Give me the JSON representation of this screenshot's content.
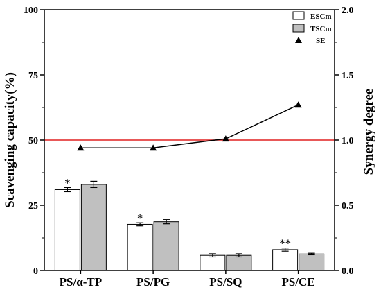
{
  "chart_data": {
    "type": "bar",
    "categories": [
      "PS/α-TP",
      "PS/PG",
      "PS/SQ",
      "PS/CE"
    ],
    "series": [
      {
        "name": "ESCm",
        "values": [
          31.0,
          17.7,
          5.8,
          8.0
        ],
        "errors": [
          0.8,
          0.6,
          0.6,
          0.6
        ],
        "color": "#ffffff"
      },
      {
        "name": "TSCm",
        "values": [
          33.0,
          18.7,
          5.8,
          6.3
        ],
        "errors": [
          1.2,
          0.8,
          0.6,
          0.3
        ],
        "color": "#c0c0c0"
      }
    ],
    "synergy": {
      "name": "SE",
      "values": [
        0.94,
        0.94,
        1.01,
        1.27
      ]
    },
    "reference_line": {
      "y2": 1.0,
      "color": "#e02020"
    },
    "annotations": [
      "*",
      "*",
      "",
      "**"
    ],
    "ylabel": "Scavenging capacity(%)",
    "y2label": "Synergy degree",
    "ylim": [
      0,
      100
    ],
    "y2lim": [
      0,
      2.0
    ],
    "yticks": [
      "0",
      "25",
      "50",
      "75",
      "100"
    ],
    "y2ticks": [
      "0.0",
      "0.5",
      "1.0",
      "1.5",
      "2.0"
    ],
    "legend_position": "top-right",
    "grid": false
  }
}
